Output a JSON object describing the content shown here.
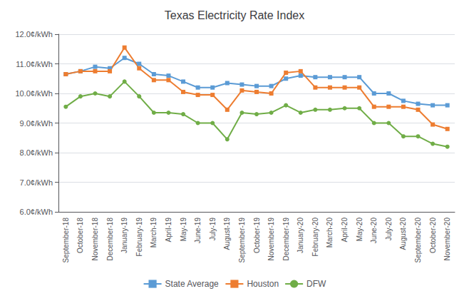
{
  "chart_data": {
    "type": "line",
    "title": "Texas Electricity Rate Index",
    "categories": [
      "September-18",
      "October-18",
      "November-18",
      "December-18",
      "January-19",
      "February-19",
      "March-19",
      "April-19",
      "May-19",
      "June-19",
      "July-19",
      "August-19",
      "September-19",
      "October-19",
      "November-19",
      "December-19",
      "January-20",
      "February-20",
      "March-20",
      "April-20",
      "May-20",
      "June-20",
      "July-20",
      "August-20",
      "September-20",
      "October-20",
      "November-20"
    ],
    "series": [
      {
        "name": "State Average",
        "color": "#5b9bd5",
        "marker": "square",
        "values": [
          10.65,
          10.75,
          10.9,
          10.85,
          11.2,
          11.0,
          10.65,
          10.6,
          10.4,
          10.2,
          10.2,
          10.35,
          10.3,
          10.25,
          10.25,
          10.5,
          10.6,
          10.55,
          10.55,
          10.55,
          10.55,
          10.0,
          10.0,
          9.75,
          9.65,
          9.6,
          9.6
        ]
      },
      {
        "name": "Houston",
        "color": "#ed7d31",
        "marker": "square",
        "values": [
          10.65,
          10.75,
          10.75,
          10.75,
          11.55,
          10.85,
          10.45,
          10.45,
          10.05,
          9.95,
          9.95,
          9.45,
          10.1,
          10.05,
          10.0,
          10.7,
          10.75,
          10.2,
          10.2,
          10.2,
          10.2,
          9.55,
          9.55,
          9.55,
          9.45,
          8.95,
          8.8
        ]
      },
      {
        "name": "DFW",
        "color": "#70ad47",
        "marker": "circle",
        "values": [
          9.55,
          9.9,
          10.0,
          9.9,
          10.4,
          9.9,
          9.35,
          9.35,
          9.3,
          9.0,
          9.0,
          8.45,
          9.35,
          9.3,
          9.35,
          9.6,
          9.35,
          9.45,
          9.45,
          9.5,
          9.5,
          9.0,
          9.0,
          8.55,
          8.55,
          8.3,
          8.2
        ]
      }
    ],
    "ylim": [
      6.0,
      12.0
    ],
    "yticks": [
      {
        "value": 6.0,
        "label": "6.0¢/kWh"
      },
      {
        "value": 7.0,
        "label": "7.0¢/kWh"
      },
      {
        "value": 8.0,
        "label": "8.0¢/kWh"
      },
      {
        "value": 9.0,
        "label": "9.0¢/kWh"
      },
      {
        "value": 10.0,
        "label": "10.0¢/kWh"
      },
      {
        "value": 11.0,
        "label": "11.0¢/kWh"
      },
      {
        "value": 12.0,
        "label": "12.0¢/kWh"
      }
    ],
    "grid": true,
    "legend": "bottom"
  }
}
